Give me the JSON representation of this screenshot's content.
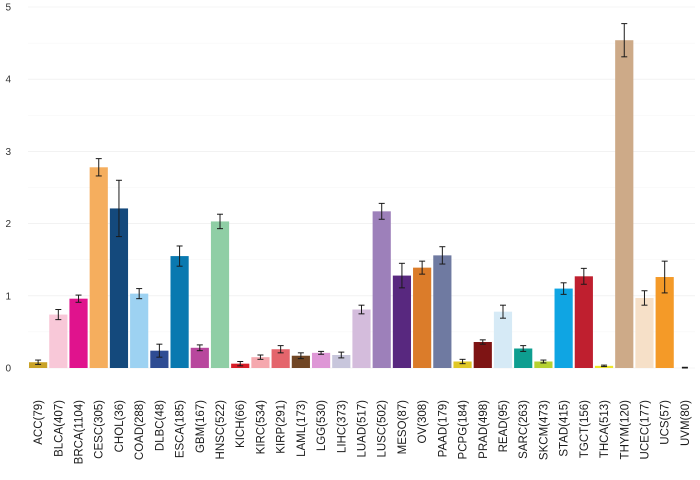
{
  "chart_data": {
    "type": "bar",
    "title": "",
    "xlabel": "",
    "ylabel": "",
    "ylim": [
      0,
      5
    ],
    "yticks": [
      0,
      1,
      2,
      3,
      4,
      5
    ],
    "grid": true,
    "error_bars": true,
    "categories": [
      "ACC(79)",
      "BLCA(407)",
      "BRCA(1104)",
      "CESC(305)",
      "CHOL(36)",
      "COAD(288)",
      "DLBC(48)",
      "ESCA(185)",
      "GBM(167)",
      "HNSC(522)",
      "KICH(66)",
      "KIRC(534)",
      "KIRP(291)",
      "LAML(173)",
      "LGG(530)",
      "LIHC(373)",
      "LUAD(517)",
      "LUSC(502)",
      "MESO(87)",
      "OV(308)",
      "PAAD(179)",
      "PCPG(184)",
      "PRAD(498)",
      "READ(95)",
      "SARC(263)",
      "SKCM(473)",
      "STAD(415)",
      "TGCT(156)",
      "THCA(513)",
      "THYM(120)",
      "UCEC(177)",
      "UCS(57)",
      "UVM(80)"
    ],
    "values": [
      0.08,
      0.74,
      0.96,
      2.78,
      2.21,
      1.03,
      0.24,
      1.55,
      0.28,
      2.03,
      0.06,
      0.15,
      0.26,
      0.17,
      0.21,
      0.18,
      0.81,
      2.17,
      1.28,
      1.39,
      1.56,
      0.09,
      0.36,
      0.78,
      0.27,
      0.09,
      1.1,
      1.27,
      0.03,
      4.54,
      0.97,
      1.26,
      0.0
    ],
    "errors": [
      0.03,
      0.07,
      0.05,
      0.12,
      0.39,
      0.07,
      0.09,
      0.14,
      0.04,
      0.1,
      0.03,
      0.03,
      0.05,
      0.04,
      0.02,
      0.04,
      0.06,
      0.11,
      0.17,
      0.09,
      0.12,
      0.03,
      0.03,
      0.09,
      0.04,
      0.02,
      0.08,
      0.11,
      0.01,
      0.23,
      0.1,
      0.22,
      0.01
    ],
    "colors": [
      "#C9A227",
      "#F8C8D8",
      "#E0138D",
      "#F5AE5E",
      "#14497C",
      "#9DD2F2",
      "#2E4C93",
      "#0979B0",
      "#B8479D",
      "#8FCEA5",
      "#D81E28",
      "#F5A8AE",
      "#E4656C",
      "#704624",
      "#DE97D6",
      "#C8C6DC",
      "#D4BCDC",
      "#9D80BA",
      "#58287F",
      "#DB7C2A",
      "#6F7AA1",
      "#E0C726",
      "#7E1414",
      "#D6EAF6",
      "#0E9E90",
      "#B6D130",
      "#0FA5E3",
      "#BF1F2F",
      "#EDE62A",
      "#CDAA88",
      "#F6E0C8",
      "#F49A28",
      "#333333"
    ]
  }
}
